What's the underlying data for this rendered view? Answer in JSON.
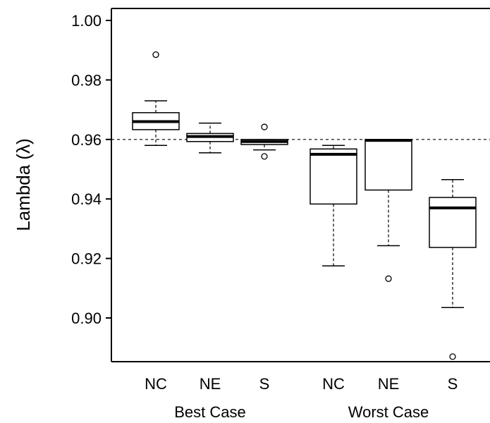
{
  "chart_data": {
    "type": "boxplot",
    "ylabel": "Lambda (λ)",
    "ylim": [
      0.885,
      1.004
    ],
    "yticks": [
      "0.90",
      "0.92",
      "0.94",
      "0.96",
      "0.98",
      "1.00"
    ],
    "reference_line": {
      "y": 0.96,
      "style": "dashed"
    },
    "groups": [
      {
        "label": "Best Case",
        "categories": [
          "NC",
          "NE",
          "S"
        ]
      },
      {
        "label": "Worst Case",
        "categories": [
          "NC",
          "NE",
          "S"
        ]
      }
    ],
    "boxes": [
      {
        "label": "NC",
        "group": "Best Case",
        "whisker_low": 0.958,
        "q1": 0.9633,
        "median": 0.966,
        "q3": 0.969,
        "whisker_high": 0.973,
        "outliers": [
          0.9885
        ]
      },
      {
        "label": "NE",
        "group": "Best Case",
        "whisker_low": 0.9555,
        "q1": 0.9593,
        "median": 0.961,
        "q3": 0.962,
        "whisker_high": 0.9655,
        "outliers": []
      },
      {
        "label": "S",
        "group": "Best Case",
        "whisker_low": 0.9565,
        "q1": 0.9583,
        "median": 0.9593,
        "q3": 0.96,
        "whisker_high": 0.96,
        "outliers": [
          0.9543,
          0.9642
        ]
      },
      {
        "label": "NC",
        "group": "Worst Case",
        "whisker_low": 0.9175,
        "q1": 0.9383,
        "median": 0.955,
        "q3": 0.9568,
        "whisker_high": 0.958,
        "outliers": []
      },
      {
        "label": "NE",
        "group": "Worst Case",
        "whisker_low": 0.9243,
        "q1": 0.943,
        "median": 0.9597,
        "q3": 0.96,
        "whisker_high": 0.96,
        "outliers": [
          0.9132
        ]
      },
      {
        "label": "S",
        "group": "Worst Case",
        "whisker_low": 0.9035,
        "q1": 0.9237,
        "median": 0.937,
        "q3": 0.9405,
        "whisker_high": 0.9465,
        "outliers": [
          0.887
        ]
      }
    ]
  }
}
